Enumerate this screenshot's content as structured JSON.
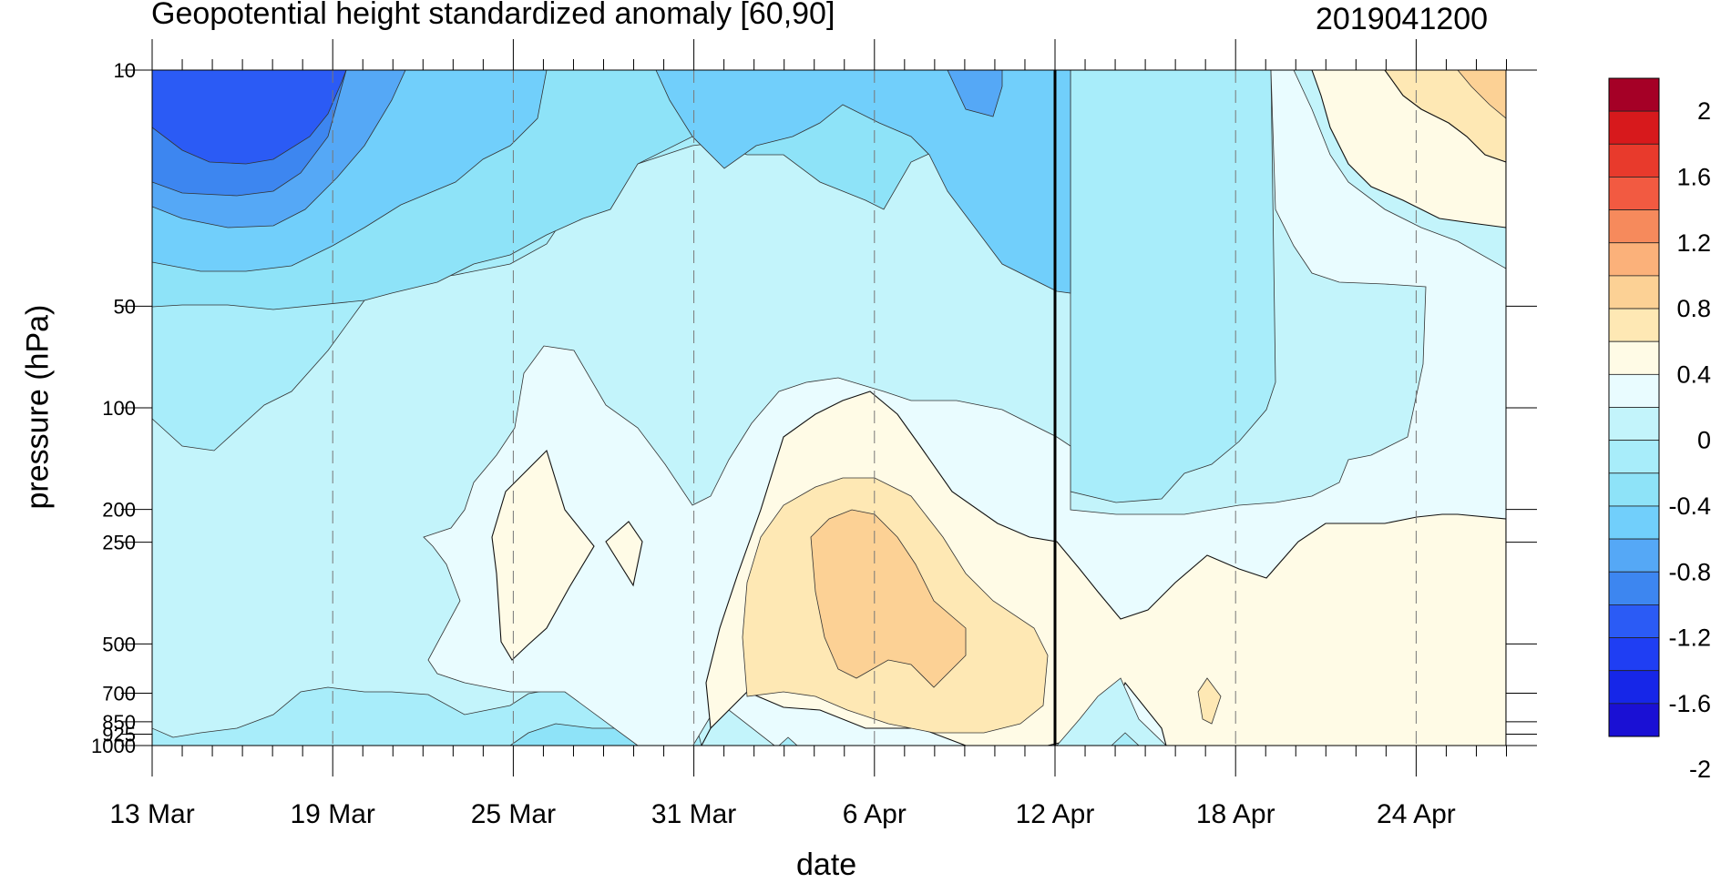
{
  "chart_data": {
    "type": "heatmap",
    "subtype": "filled-contour",
    "title": "Geopotential height standardized anomaly [60,90]",
    "date_stamp": "2019041200",
    "xlabel": "date",
    "ylabel": "pressure (hPa)",
    "x_tick_labels": [
      "13 Mar",
      "19 Mar",
      "25 Mar",
      "31 Mar",
      "6 Apr",
      "12 Apr",
      "18 Apr",
      "24 Apr"
    ],
    "y_tick_labels": [
      "10",
      "50",
      "100",
      "200",
      "250",
      "500",
      "700",
      "850",
      "925",
      "1000"
    ],
    "y_scale": "log (pressure, decreasing upward)",
    "vertical_marker": "12 Apr",
    "colorbar": {
      "labels": [
        "2",
        "1.6",
        "1.2",
        "0.8",
        "0.4",
        "0",
        "-0.4",
        "-0.8",
        "-1.2",
        "-1.6",
        "-2"
      ],
      "colors": [
        "#a50026",
        "#d7191c",
        "#e83a2c",
        "#f25a41",
        "#f68a5c",
        "#fbb17a",
        "#fcd195",
        "#fee8b4",
        "#fffbe6",
        "#e9fcff",
        "#c3f4fb",
        "#a8edfa",
        "#8ee3f8",
        "#71cffb",
        "#55a8f6",
        "#3d86f0",
        "#2b5bf5",
        "#1f3ef3",
        "#1626e8",
        "#1a10d4"
      ]
    },
    "levels": {
      "-1.6": "#2b5bf5",
      "-1.2": "#3d86f0",
      "-1.0": "#55a8f6",
      "-0.8": "#71cffb",
      "-0.6": "#8ee3f8",
      "-0.4": "#a8edfa",
      "-0.2": "#c3f4fb",
      "0": "#e9fcff",
      "0.2": "#fffbe6",
      "0.4": "#fee8b4",
      "0.6": "#fcd195"
    }
  }
}
